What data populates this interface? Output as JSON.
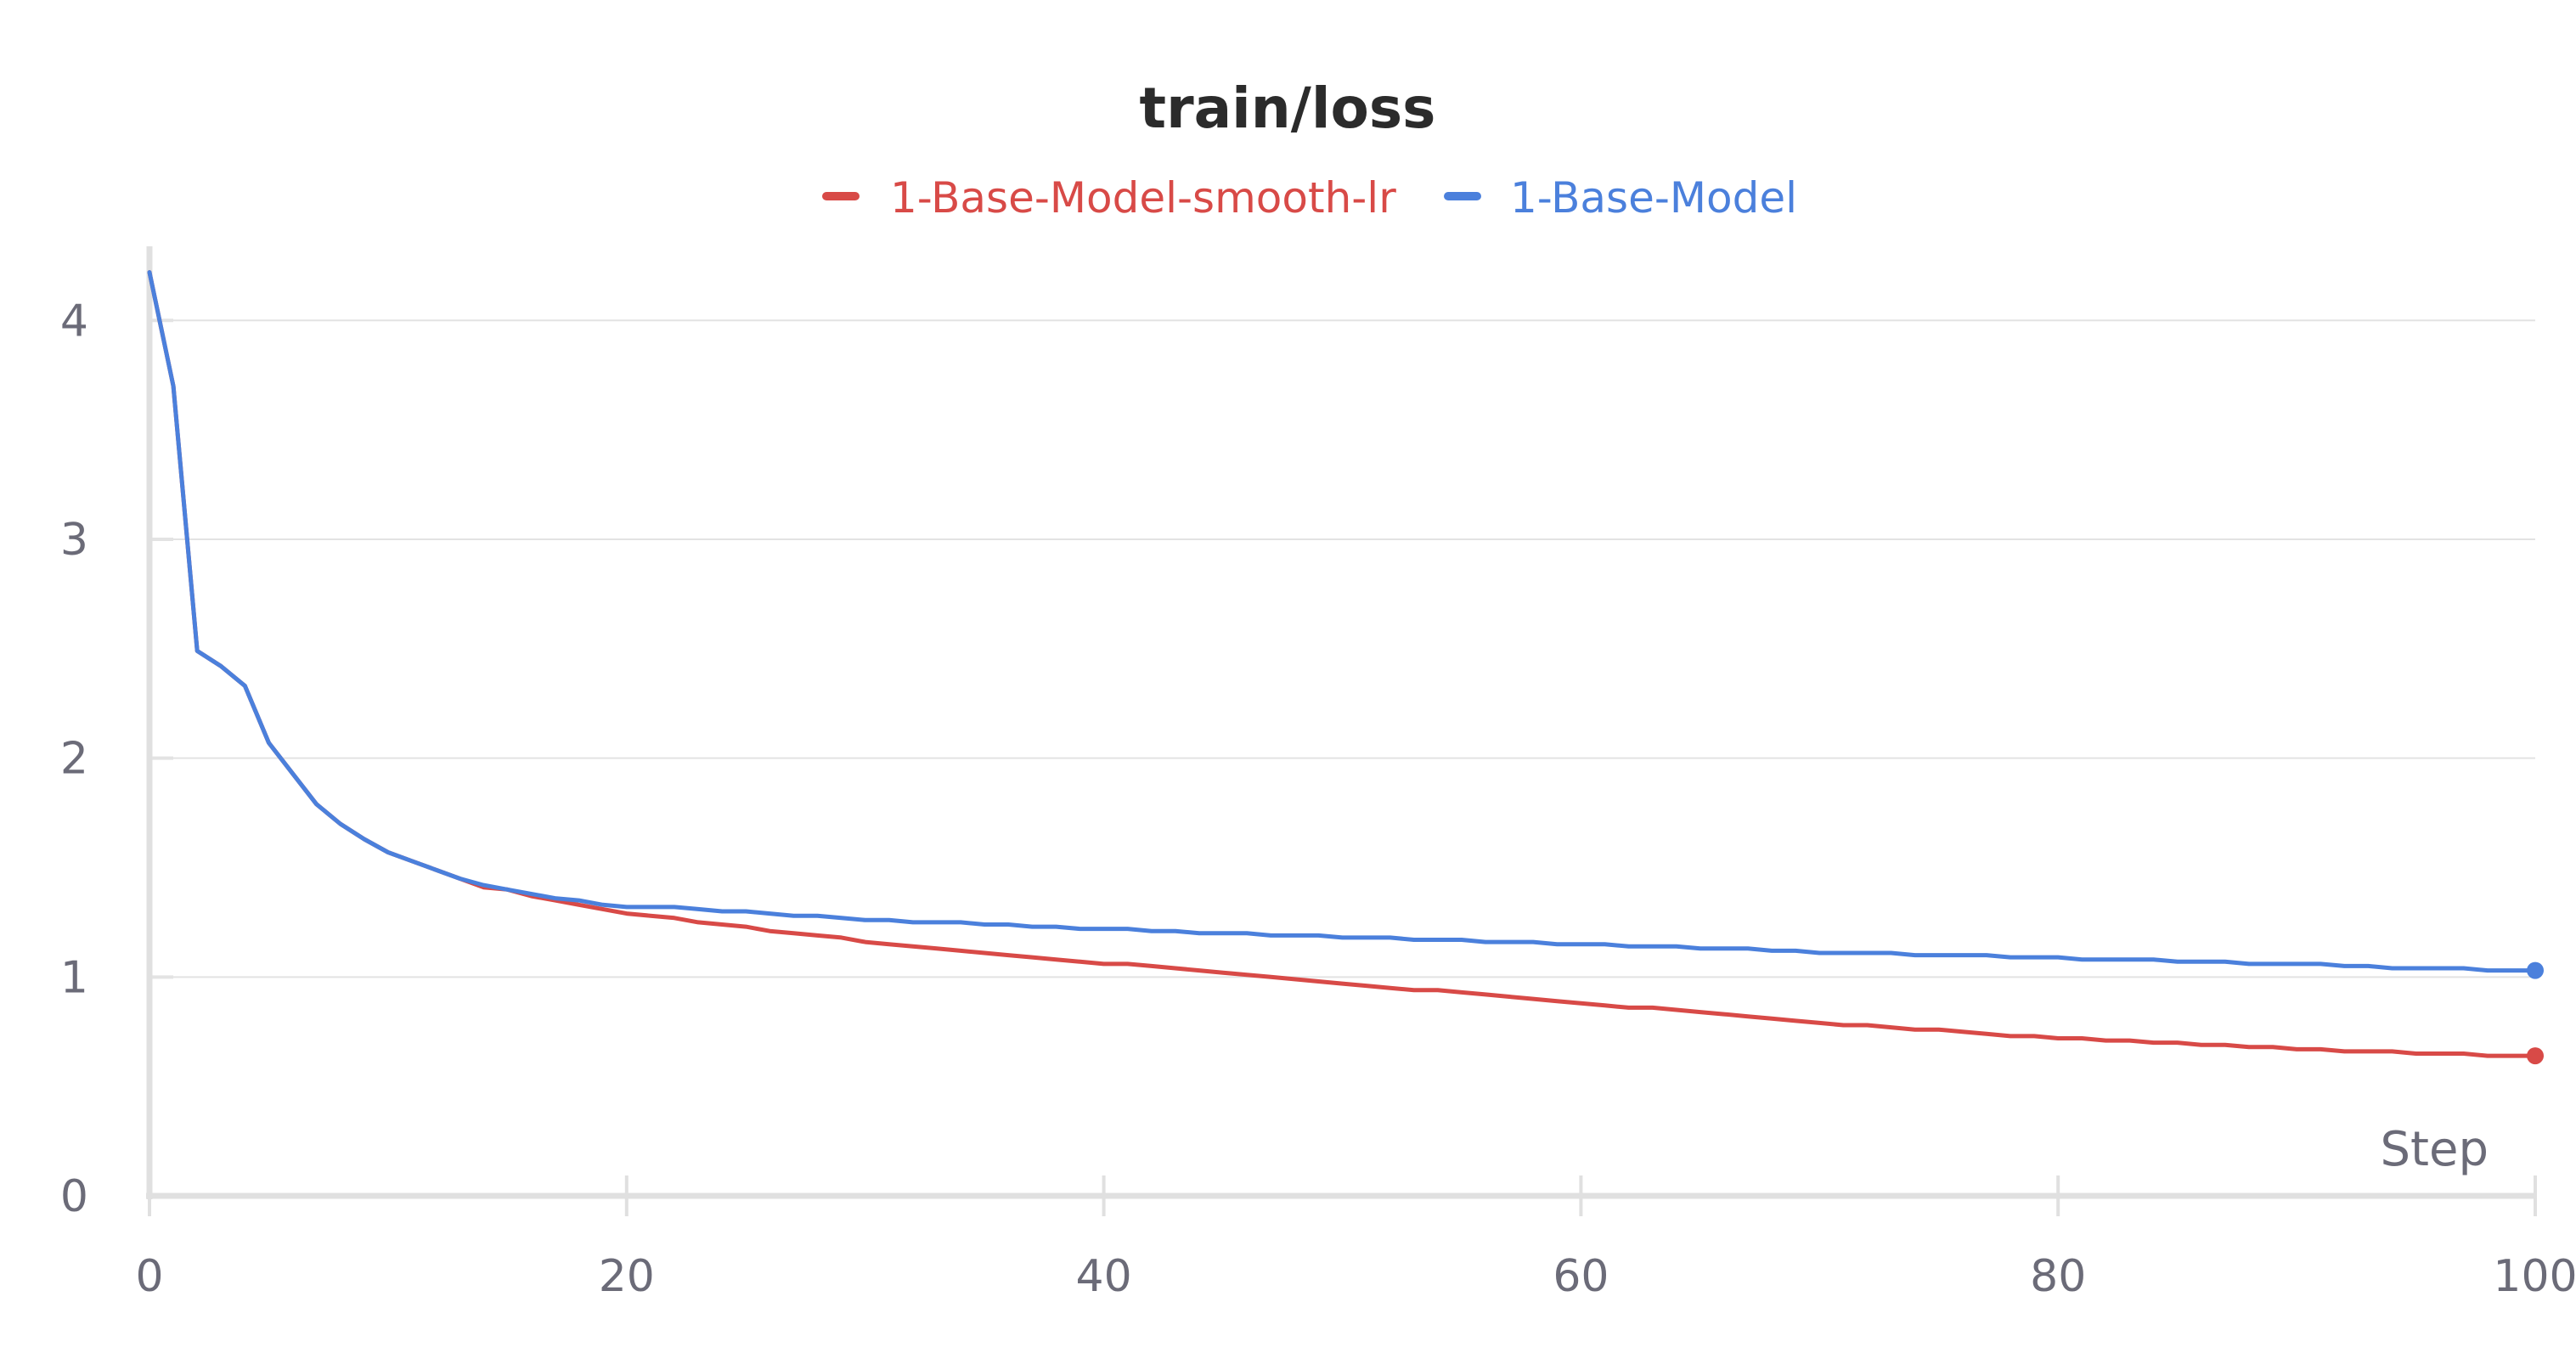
{
  "chart_data": {
    "type": "line",
    "title": "train/loss",
    "xlabel": "Step",
    "ylabel": "",
    "xlim": [
      0,
      100
    ],
    "ylim": [
      0,
      4.3
    ],
    "x_ticks": [
      "0",
      "20",
      "40",
      "60",
      "80",
      "100"
    ],
    "y_ticks": [
      "0",
      "1",
      "2",
      "3",
      "4"
    ],
    "grid": true,
    "legend_position": "top-center",
    "series": [
      {
        "name": "1-Base-Model-smooth-lr",
        "color": "#d84a47",
        "x": [
          0,
          1,
          2,
          3,
          4,
          5,
          6,
          7,
          8,
          9,
          10,
          11,
          12,
          13,
          14,
          15,
          16,
          17,
          18,
          19,
          20,
          21,
          22,
          23,
          24,
          25,
          26,
          27,
          28,
          29,
          30,
          31,
          32,
          33,
          34,
          35,
          36,
          37,
          38,
          39,
          40,
          41,
          42,
          43,
          44,
          45,
          46,
          47,
          48,
          49,
          50,
          51,
          52,
          53,
          54,
          55,
          56,
          57,
          58,
          59,
          60,
          61,
          62,
          63,
          64,
          65,
          66,
          67,
          68,
          69,
          70,
          71,
          72,
          73,
          74,
          75,
          76,
          77,
          78,
          79,
          80,
          81,
          82,
          83,
          84,
          85,
          86,
          87,
          88,
          89,
          90,
          91,
          92,
          93,
          94,
          95,
          96,
          97,
          98,
          99,
          100
        ],
        "values": [
          4.22,
          3.7,
          2.49,
          2.42,
          2.33,
          2.07,
          1.93,
          1.79,
          1.7,
          1.63,
          1.57,
          1.53,
          1.49,
          1.45,
          1.41,
          1.4,
          1.37,
          1.35,
          1.33,
          1.31,
          1.29,
          1.28,
          1.27,
          1.25,
          1.24,
          1.23,
          1.21,
          1.2,
          1.19,
          1.18,
          1.16,
          1.15,
          1.14,
          1.13,
          1.12,
          1.11,
          1.1,
          1.09,
          1.08,
          1.07,
          1.06,
          1.06,
          1.05,
          1.04,
          1.03,
          1.02,
          1.01,
          1.0,
          0.99,
          0.98,
          0.97,
          0.96,
          0.95,
          0.94,
          0.94,
          0.93,
          0.92,
          0.91,
          0.9,
          0.89,
          0.88,
          0.87,
          0.86,
          0.86,
          0.85,
          0.84,
          0.83,
          0.82,
          0.81,
          0.8,
          0.79,
          0.78,
          0.78,
          0.77,
          0.76,
          0.76,
          0.75,
          0.74,
          0.73,
          0.73,
          0.72,
          0.72,
          0.71,
          0.71,
          0.7,
          0.7,
          0.69,
          0.69,
          0.68,
          0.68,
          0.67,
          0.67,
          0.66,
          0.66,
          0.66,
          0.65,
          0.65,
          0.65,
          0.64,
          0.64,
          0.64
        ]
      },
      {
        "name": "1-Base-Model",
        "color": "#4b80dc",
        "x": [
          0,
          1,
          2,
          3,
          4,
          5,
          6,
          7,
          8,
          9,
          10,
          11,
          12,
          13,
          14,
          15,
          16,
          17,
          18,
          19,
          20,
          21,
          22,
          23,
          24,
          25,
          26,
          27,
          28,
          29,
          30,
          31,
          32,
          33,
          34,
          35,
          36,
          37,
          38,
          39,
          40,
          41,
          42,
          43,
          44,
          45,
          46,
          47,
          48,
          49,
          50,
          51,
          52,
          53,
          54,
          55,
          56,
          57,
          58,
          59,
          60,
          61,
          62,
          63,
          64,
          65,
          66,
          67,
          68,
          69,
          70,
          71,
          72,
          73,
          74,
          75,
          76,
          77,
          78,
          79,
          80,
          81,
          82,
          83,
          84,
          85,
          86,
          87,
          88,
          89,
          90,
          91,
          92,
          93,
          94,
          95,
          96,
          97,
          98,
          99,
          100
        ],
        "values": [
          4.22,
          3.7,
          2.49,
          2.42,
          2.33,
          2.07,
          1.93,
          1.79,
          1.7,
          1.63,
          1.57,
          1.53,
          1.49,
          1.45,
          1.42,
          1.4,
          1.38,
          1.36,
          1.35,
          1.33,
          1.32,
          1.32,
          1.32,
          1.31,
          1.3,
          1.3,
          1.29,
          1.28,
          1.28,
          1.27,
          1.26,
          1.26,
          1.25,
          1.25,
          1.25,
          1.24,
          1.24,
          1.23,
          1.23,
          1.22,
          1.22,
          1.22,
          1.21,
          1.21,
          1.2,
          1.2,
          1.2,
          1.19,
          1.19,
          1.19,
          1.18,
          1.18,
          1.18,
          1.17,
          1.17,
          1.17,
          1.16,
          1.16,
          1.16,
          1.15,
          1.15,
          1.15,
          1.14,
          1.14,
          1.14,
          1.13,
          1.13,
          1.13,
          1.12,
          1.12,
          1.11,
          1.11,
          1.11,
          1.11,
          1.1,
          1.1,
          1.1,
          1.1,
          1.09,
          1.09,
          1.09,
          1.08,
          1.08,
          1.08,
          1.08,
          1.07,
          1.07,
          1.07,
          1.06,
          1.06,
          1.06,
          1.06,
          1.05,
          1.05,
          1.04,
          1.04,
          1.04,
          1.04,
          1.03,
          1.03,
          1.03
        ]
      }
    ]
  }
}
